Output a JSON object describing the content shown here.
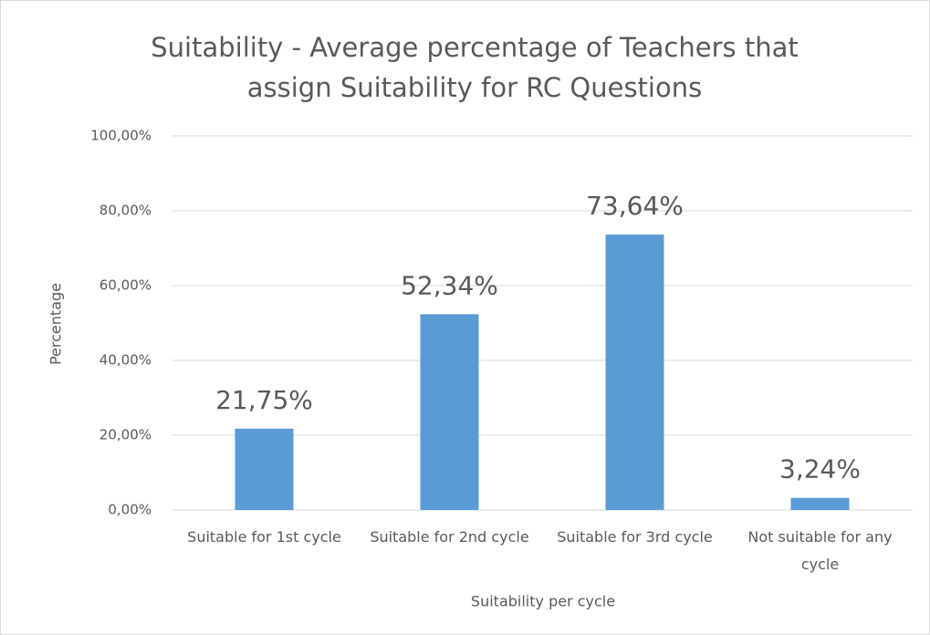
{
  "chart_data": {
    "type": "bar",
    "title": "Suitability - Average percentage of Teachers that assign Suitability for RC Questions",
    "x_label": "Suitability per cycle",
    "y_label": "Percentage",
    "categories": [
      "Suitable for 1st cycle",
      "Suitable for 2nd cycle",
      "Suitable for 3rd cycle",
      "Not suitable for any cycle"
    ],
    "values": [
      21.75,
      52.34,
      73.64,
      3.24
    ],
    "value_labels": [
      "21,75%",
      "52,34%",
      "73,64%",
      "3,24%"
    ],
    "color": "#5b9bd5",
    "ylim": [
      0,
      100
    ],
    "yticks": [
      {
        "value": 0,
        "label": "0,00%"
      },
      {
        "value": 20,
        "label": "20,00%"
      },
      {
        "value": 40,
        "label": "40,00%"
      },
      {
        "value": 60,
        "label": "60,00%"
      },
      {
        "value": 80,
        "label": "80,00%"
      },
      {
        "value": 100,
        "label": "100,00%"
      }
    ],
    "grid": true
  }
}
